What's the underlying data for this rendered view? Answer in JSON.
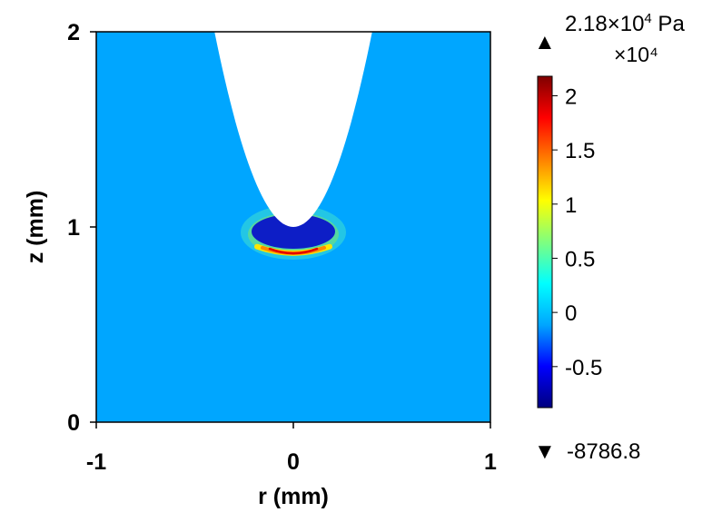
{
  "chart_data": {
    "type": "heatmap",
    "title": "",
    "xlabel": "r (mm)",
    "ylabel": "z (mm)",
    "xlim": [
      -1,
      1
    ],
    "ylim": [
      0,
      2
    ],
    "xticks": [
      {
        "value": -1,
        "label": "-1"
      },
      {
        "value": 0,
        "label": "0"
      },
      {
        "value": 1,
        "label": "1"
      }
    ],
    "yticks": [
      {
        "value": 0,
        "label": "0"
      },
      {
        "value": 1,
        "label": "1"
      },
      {
        "value": 2,
        "label": "2"
      }
    ],
    "background_color": "#00a6ff",
    "cavity": {
      "description_shape": "parabolic void (white) opening upward",
      "tip_z": 1.0,
      "half_width_at_top_r": 0.4,
      "top_z": 2.0,
      "color": "#ffffff"
    },
    "pressure_band": {
      "center_r": 0,
      "peak_z": 0.86,
      "peak_color": "#e40000",
      "low_color": "#0a14c8"
    },
    "colorbar": {
      "min": -0.87868,
      "max": 2.18,
      "multiplier_label": "×10⁴",
      "ticks": [
        {
          "value": 2,
          "label": "2"
        },
        {
          "value": 1.5,
          "label": "1.5"
        },
        {
          "value": 1,
          "label": "1"
        },
        {
          "value": 0.5,
          "label": "0.5"
        },
        {
          "value": 0,
          "label": "0"
        },
        {
          "value": -0.5,
          "label": "-0.5"
        }
      ],
      "stops": [
        "#00007f",
        "#0000ff",
        "#00a6ff",
        "#00ffff",
        "#7fff7f",
        "#ffff00",
        "#ff7f00",
        "#ff0000",
        "#7f0000"
      ],
      "max_annotation": {
        "symbol": "▲",
        "text": "2.18×10",
        "exp": "4",
        "unit": " Pa"
      },
      "min_annotation": {
        "symbol": "▼",
        "text": "-8786.8"
      }
    }
  }
}
